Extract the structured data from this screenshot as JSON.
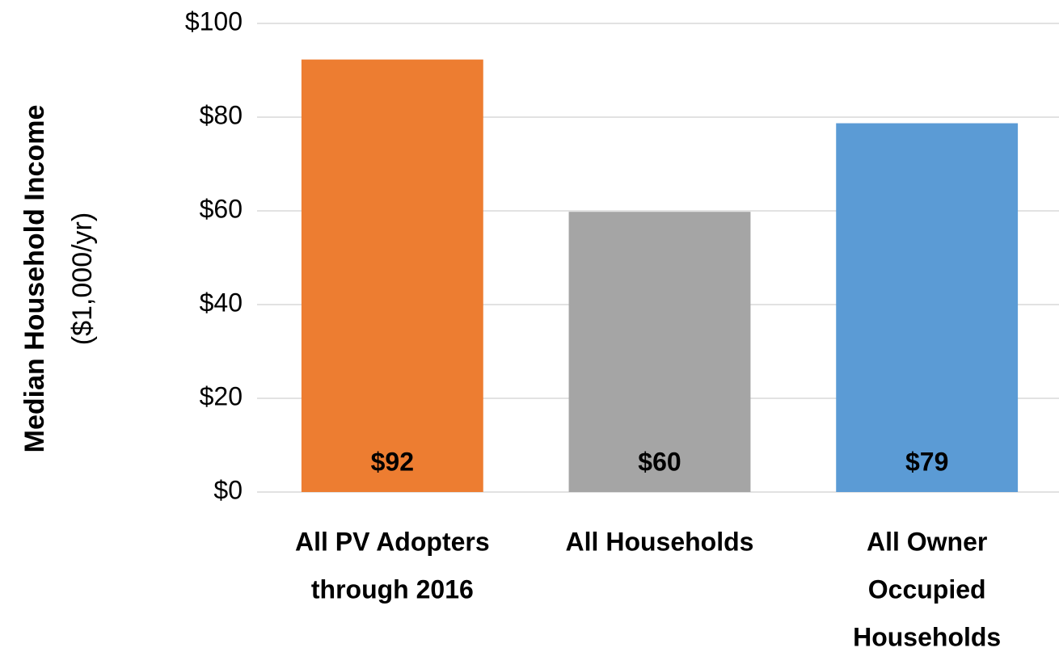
{
  "chart_data": {
    "type": "bar",
    "y_label": [
      "Median Household Income",
      "($1,000/yr)"
    ],
    "categories": [
      [
        "All PV Adopters",
        "through 2016"
      ],
      [
        "All Households"
      ],
      [
        "All Owner",
        "Occupied",
        "Households"
      ]
    ],
    "values": [
      92.3,
      59.8,
      78.7
    ],
    "value_labels": [
      "$92",
      "$60",
      "$79"
    ],
    "colors": [
      "#ed7d31",
      "#a5a5a5",
      "#5b9bd5"
    ],
    "ylim": [
      0,
      100
    ],
    "yticks": [
      {
        "value": 0,
        "label": "$0"
      },
      {
        "value": 20,
        "label": "$20"
      },
      {
        "value": 40,
        "label": "$40"
      },
      {
        "value": 60,
        "label": "$60"
      },
      {
        "value": 80,
        "label": "$80"
      },
      {
        "value": 100,
        "label": "$100"
      }
    ],
    "grid": true
  }
}
